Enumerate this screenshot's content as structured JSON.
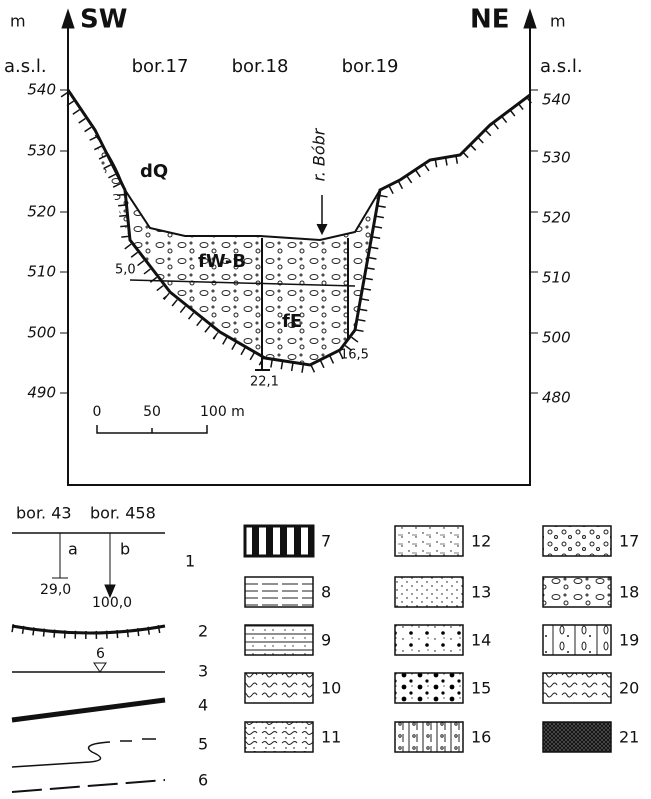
{
  "header": {
    "left_unit": "m",
    "left_unit_sub": "a.s.l.",
    "left_dir": "SW",
    "right_dir": "NE",
    "right_unit": "m",
    "right_unit_sub": "a.s.l."
  },
  "boreholes": [
    "bor.17",
    "bor.18",
    "bor.19"
  ],
  "left_axis": [
    "540",
    "530",
    "520",
    "510",
    "500",
    "490"
  ],
  "right_axis": [
    "540",
    "530",
    "520",
    "510",
    "500",
    "480"
  ],
  "labels": {
    "dq": "dQ",
    "river": "r. Bóbr",
    "fwb": "fW-B",
    "fe": "fE",
    "depth_17": "5,0",
    "depth_19": "16,5",
    "depth_18": "22,1"
  },
  "scale": [
    "0",
    "50",
    "100 m"
  ],
  "legend": {
    "bor_a": "bor. 43",
    "bor_b": "bor. 458",
    "a": "a",
    "b": "b",
    "depth_a": "29,0",
    "depth_b": "100,0",
    "water": "6",
    "items": [
      "1",
      "2",
      "3",
      "4",
      "5",
      "6",
      "7",
      "8",
      "9",
      "10",
      "11",
      "12",
      "13",
      "14",
      "15",
      "16",
      "17",
      "18",
      "19",
      "20",
      "21"
    ]
  }
}
